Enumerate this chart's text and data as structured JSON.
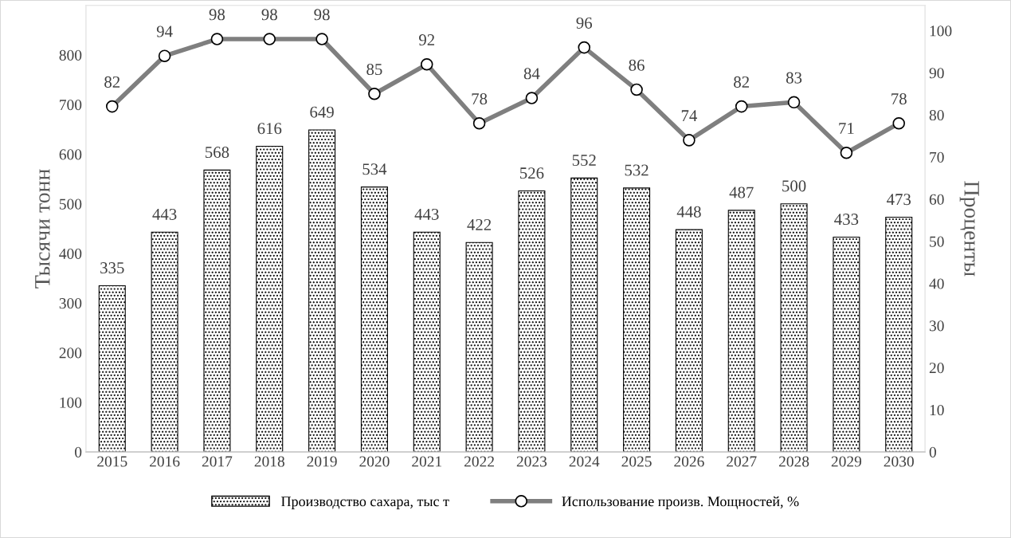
{
  "chart_data": {
    "type": "bar",
    "categories": [
      "2015",
      "2016",
      "2017",
      "2018",
      "2019",
      "2020",
      "2021",
      "2022",
      "2023",
      "2024",
      "2025",
      "2026",
      "2027",
      "2028",
      "2029",
      "2030"
    ],
    "series": [
      {
        "name": "Производство сахара, тыс т",
        "color": "#000000",
        "values": [
          335,
          443,
          568,
          616,
          649,
          534,
          443,
          422,
          526,
          552,
          532,
          448,
          487,
          500,
          433,
          473
        ]
      },
      {
        "name": "Использование произв. Мощностей, %",
        "type": "line",
        "axis": "y2",
        "color": "#7f7f7f",
        "marker": "circle",
        "values": [
          82,
          94,
          98,
          98,
          98,
          85,
          92,
          78,
          84,
          96,
          86,
          74,
          82,
          83,
          71,
          78
        ]
      }
    ],
    "ylabel": "Тысячи тонн",
    "y2label": "Проценты",
    "ylim": [
      0,
      900
    ],
    "yticks": [
      0,
      100,
      200,
      300,
      400,
      500,
      600,
      700,
      800
    ],
    "y2lim": [
      0,
      106
    ],
    "y2ticks": [
      0,
      10,
      20,
      30,
      40,
      50,
      60,
      70,
      80,
      90,
      100
    ],
    "data_labels": true,
    "legend": "bottom",
    "grid": false
  }
}
